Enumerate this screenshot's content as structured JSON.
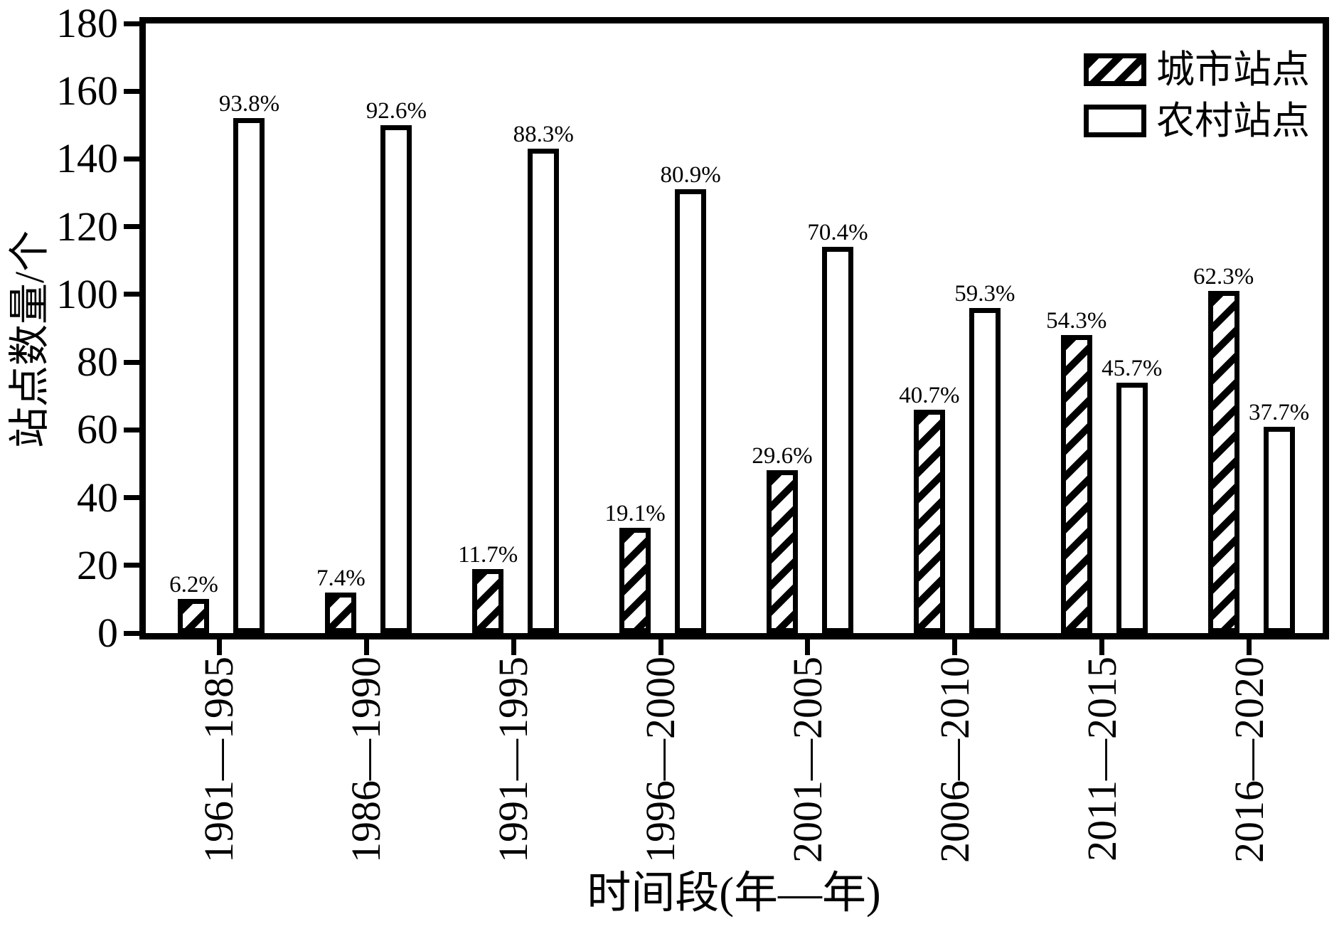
{
  "chart_data": {
    "type": "bar",
    "title": "",
    "xlabel": "时间段(年—年)",
    "ylabel": "站点数量/个",
    "categories": [
      "1961—1985",
      "1986—1990",
      "1991—1995",
      "1996—2000",
      "2001—2005",
      "2006—2010",
      "2011—2015",
      "2016—2020"
    ],
    "series": [
      {
        "name": "城市站点",
        "style": "hatched",
        "values": [
          10,
          12,
          19,
          31,
          48,
          66,
          88,
          101
        ],
        "percent_labels": [
          "6.2%",
          "7.4%",
          "11.7%",
          "19.1%",
          "29.6%",
          "40.7%",
          "54.3%",
          "62.3%"
        ]
      },
      {
        "name": "农村站点",
        "style": "plain",
        "values": [
          152,
          150,
          143,
          131,
          114,
          96,
          74,
          61
        ],
        "percent_labels": [
          "93.8%",
          "92.6%",
          "88.3%",
          "80.9%",
          "70.4%",
          "59.3%",
          "45.7%",
          "37.7%"
        ]
      }
    ],
    "ylim": [
      0,
      180
    ],
    "yticks": [
      0,
      20,
      40,
      60,
      80,
      100,
      120,
      140,
      160,
      180
    ],
    "grid": false,
    "legend_position": "top-right-inside",
    "colors": {
      "foreground": "#000000",
      "background": "#ffffff",
      "bar_fill_rural": "#ffffff",
      "bar_hatch_urban": "#000000"
    }
  },
  "legend": {
    "items": [
      {
        "label": "城市站点",
        "swatch": "hatched"
      },
      {
        "label": "农村站点",
        "swatch": "plain"
      }
    ]
  }
}
